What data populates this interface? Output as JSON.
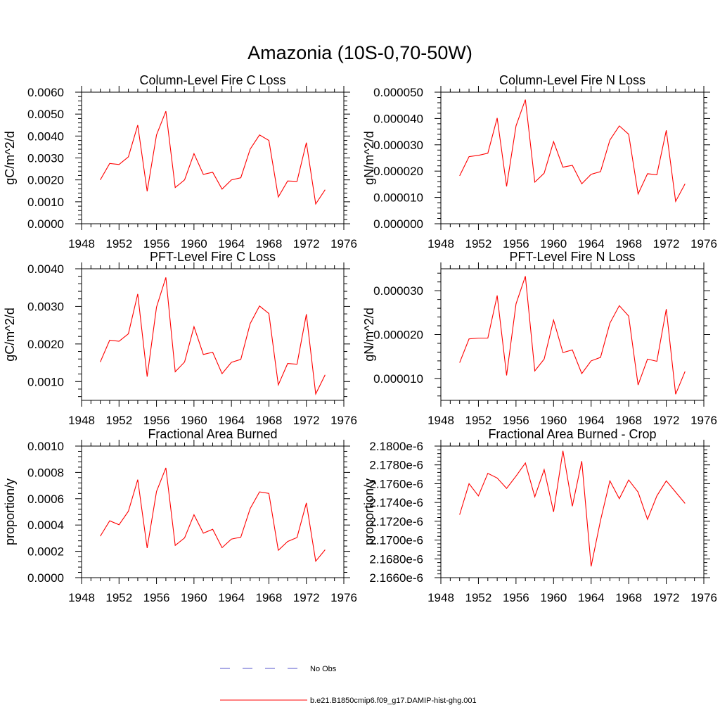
{
  "page_title": "Amazonia (10S-0,70-50W)",
  "legend": {
    "entries": [
      {
        "label": "No Obs",
        "color": "#5555cc",
        "style": "dashed"
      },
      {
        "label": "b.e21.B1850cmip6.f09_g17.DAMIP-hist-ghg.001",
        "color": "#ff0000",
        "style": "solid"
      }
    ]
  },
  "chart_data": [
    {
      "type": "line",
      "title": "Column-Level Fire C Loss",
      "ylabel": "gC/m^2/d",
      "xlim": [
        1948,
        1976
      ],
      "ylim": [
        0,
        0.006
      ],
      "xticks": [
        1948,
        1952,
        1956,
        1960,
        1964,
        1968,
        1972,
        1976
      ],
      "xtick_labels": [
        "1948",
        "1952",
        "1956",
        "1960",
        "1964",
        "1968",
        "1972",
        "1976"
      ],
      "yticks": [
        0,
        0.001,
        0.002,
        0.003,
        0.004,
        0.005,
        0.006
      ],
      "ytick_labels": [
        "0.0000",
        "0.0010",
        "0.0020",
        "0.0030",
        "0.0040",
        "0.0050",
        "0.0060"
      ],
      "x": [
        1950,
        1951,
        1952,
        1953,
        1954,
        1955,
        1956,
        1957,
        1958,
        1959,
        1960,
        1961,
        1962,
        1963,
        1964,
        1965,
        1966,
        1967,
        1968,
        1969,
        1970,
        1971,
        1972,
        1973,
        1974
      ],
      "series": [
        {
          "color": "#ff0000",
          "values": [
            0.002,
            0.00275,
            0.0027,
            0.00305,
            0.0045,
            0.00148,
            0.00405,
            0.00513,
            0.00165,
            0.002,
            0.0032,
            0.00225,
            0.00235,
            0.00158,
            0.002,
            0.0021,
            0.0034,
            0.00405,
            0.0038,
            0.00122,
            0.00195,
            0.00193,
            0.0037,
            0.0009,
            0.00155
          ]
        }
      ]
    },
    {
      "type": "line",
      "title": "Column-Level Fire N Loss",
      "ylabel": "gN/m^2/d",
      "xlim": [
        1948,
        1976
      ],
      "ylim": [
        0,
        5e-05
      ],
      "xticks": [
        1948,
        1952,
        1956,
        1960,
        1964,
        1968,
        1972,
        1976
      ],
      "xtick_labels": [
        "1948",
        "1952",
        "1956",
        "1960",
        "1964",
        "1968",
        "1972",
        "1976"
      ],
      "yticks": [
        0,
        1e-05,
        2e-05,
        3e-05,
        4e-05,
        5e-05
      ],
      "ytick_labels": [
        "0.000000",
        "0.000010",
        "0.000020",
        "0.000030",
        "0.000040",
        "0.000050"
      ],
      "x": [
        1950,
        1951,
        1952,
        1953,
        1954,
        1955,
        1956,
        1957,
        1958,
        1959,
        1960,
        1961,
        1962,
        1963,
        1964,
        1965,
        1966,
        1967,
        1968,
        1969,
        1970,
        1971,
        1972,
        1973,
        1974
      ],
      "series": [
        {
          "color": "#ff0000",
          "values": [
            1.82e-05,
            2.55e-05,
            2.6e-05,
            2.68e-05,
            4.02e-05,
            1.42e-05,
            3.72e-05,
            4.72e-05,
            1.58e-05,
            1.92e-05,
            3.12e-05,
            2.15e-05,
            2.22e-05,
            1.52e-05,
            1.88e-05,
            1.98e-05,
            3.18e-05,
            3.72e-05,
            3.4e-05,
            1.13e-05,
            1.9e-05,
            1.86e-05,
            3.55e-05,
            8.5e-06,
            1.52e-05
          ]
        }
      ]
    },
    {
      "type": "line",
      "title": "PFT-Level Fire C Loss",
      "ylabel": "gC/m^2/d",
      "xlim": [
        1948,
        1976
      ],
      "ylim": [
        0.0005,
        0.004
      ],
      "xticks": [
        1948,
        1952,
        1956,
        1960,
        1964,
        1968,
        1972,
        1976
      ],
      "xtick_labels": [
        "1948",
        "1952",
        "1956",
        "1960",
        "1964",
        "1968",
        "1972",
        "1976"
      ],
      "yticks": [
        0.001,
        0.002,
        0.003,
        0.004
      ],
      "ytick_labels": [
        "0.0010",
        "0.0020",
        "0.0030",
        "0.0040"
      ],
      "x": [
        1950,
        1951,
        1952,
        1953,
        1954,
        1955,
        1956,
        1957,
        1958,
        1959,
        1960,
        1961,
        1962,
        1963,
        1964,
        1965,
        1966,
        1967,
        1968,
        1969,
        1970,
        1971,
        1972,
        1973,
        1974
      ],
      "series": [
        {
          "color": "#ff0000",
          "values": [
            0.00152,
            0.0021,
            0.00207,
            0.00227,
            0.00333,
            0.00113,
            0.00298,
            0.00377,
            0.00126,
            0.00152,
            0.00246,
            0.00172,
            0.00178,
            0.00121,
            0.00151,
            0.00159,
            0.00254,
            0.00301,
            0.00281,
            0.00091,
            0.00148,
            0.00146,
            0.00279,
            0.00067,
            0.00118
          ]
        }
      ]
    },
    {
      "type": "line",
      "title": "PFT-Level Fire N Loss",
      "ylabel": "gN/m^2/d",
      "xlim": [
        1948,
        1976
      ],
      "ylim": [
        5e-06,
        3.5e-05
      ],
      "xticks": [
        1948,
        1952,
        1956,
        1960,
        1964,
        1968,
        1972,
        1976
      ],
      "xtick_labels": [
        "1948",
        "1952",
        "1956",
        "1960",
        "1964",
        "1968",
        "1972",
        "1976"
      ],
      "yticks": [
        1e-05,
        2e-05,
        3e-05
      ],
      "ytick_labels": [
        "0.000010",
        "0.000020",
        "0.000030"
      ],
      "x": [
        1950,
        1951,
        1952,
        1953,
        1954,
        1955,
        1956,
        1957,
        1958,
        1959,
        1960,
        1961,
        1962,
        1963,
        1964,
        1965,
        1966,
        1967,
        1968,
        1969,
        1970,
        1971,
        1972,
        1973,
        1974
      ],
      "series": [
        {
          "color": "#ff0000",
          "values": [
            1.36e-05,
            1.9e-05,
            1.92e-05,
            1.92e-05,
            2.89e-05,
            1.07e-05,
            2.7e-05,
            3.33e-05,
            1.17e-05,
            1.44e-05,
            2.33e-05,
            1.59e-05,
            1.65e-05,
            1.11e-05,
            1.4e-05,
            1.48e-05,
            2.26e-05,
            2.66e-05,
            2.42e-05,
            8.5e-06,
            1.44e-05,
            1.39e-05,
            2.58e-05,
            6.4e-06,
            1.16e-05
          ]
        }
      ]
    },
    {
      "type": "line",
      "title": "Fractional Area Burned",
      "ylabel": "proportion/y",
      "xlim": [
        1948,
        1976
      ],
      "ylim": [
        0,
        0.001
      ],
      "xticks": [
        1948,
        1952,
        1956,
        1960,
        1964,
        1968,
        1972,
        1976
      ],
      "xtick_labels": [
        "1948",
        "1952",
        "1956",
        "1960",
        "1964",
        "1968",
        "1972",
        "1976"
      ],
      "yticks": [
        0,
        0.0002,
        0.0004,
        0.0006,
        0.0008,
        0.001
      ],
      "ytick_labels": [
        "0.0000",
        "0.0002",
        "0.0004",
        "0.0006",
        "0.0008",
        "0.0010"
      ],
      "x": [
        1950,
        1951,
        1952,
        1953,
        1954,
        1955,
        1956,
        1957,
        1958,
        1959,
        1960,
        1961,
        1962,
        1963,
        1964,
        1965,
        1966,
        1967,
        1968,
        1969,
        1970,
        1971,
        1972,
        1973,
        1974
      ],
      "series": [
        {
          "color": "#ff0000",
          "values": [
            0.000315,
            0.000432,
            0.000402,
            0.000505,
            0.000745,
            0.000225,
            0.000655,
            0.000835,
            0.000245,
            0.000302,
            0.000478,
            0.000338,
            0.000368,
            0.000228,
            0.000293,
            0.000308,
            0.000525,
            0.000652,
            0.00064,
            0.000208,
            0.000275,
            0.000305,
            0.000568,
            0.000125,
            0.000212
          ]
        }
      ]
    },
    {
      "type": "line",
      "title": "Fractional Area Burned - Crop",
      "ylabel": "proportion/y",
      "xlim": [
        1948,
        1976
      ],
      "ylim": [
        2.166e-06,
        2.18e-06
      ],
      "xticks": [
        1948,
        1952,
        1956,
        1960,
        1964,
        1968,
        1972,
        1976
      ],
      "xtick_labels": [
        "1948",
        "1952",
        "1956",
        "1960",
        "1964",
        "1968",
        "1972",
        "1976"
      ],
      "yticks": [
        2.166e-06,
        2.168e-06,
        2.17e-06,
        2.172e-06,
        2.174e-06,
        2.176e-06,
        2.178e-06,
        2.18e-06
      ],
      "ytick_labels": [
        "2.1660e-6",
        "2.1680e-6",
        "2.1700e-6",
        "2.1720e-6",
        "2.1740e-6",
        "2.1760e-6",
        "2.1780e-6",
        "2.1800e-6"
      ],
      "x": [
        1950,
        1951,
        1952,
        1953,
        1954,
        1955,
        1956,
        1957,
        1958,
        1959,
        1960,
        1961,
        1962,
        1963,
        1964,
        1965,
        1966,
        1967,
        1968,
        1969,
        1970,
        1971,
        1972,
        1973,
        1974
      ],
      "series": [
        {
          "color": "#ff0000",
          "values": [
            2.1727e-06,
            2.176e-06,
            2.1747e-06,
            2.1771e-06,
            2.1766e-06,
            2.1755e-06,
            2.1768e-06,
            2.1782e-06,
            2.1746e-06,
            2.1775e-06,
            2.173e-06,
            2.1795e-06,
            2.1736e-06,
            2.1784e-06,
            2.1672e-06,
            2.1721e-06,
            2.1763e-06,
            2.1744e-06,
            2.1764e-06,
            2.1751e-06,
            2.1722e-06,
            2.1747e-06,
            2.1763e-06,
            2.1751e-06,
            2.1739e-06
          ]
        }
      ]
    }
  ]
}
